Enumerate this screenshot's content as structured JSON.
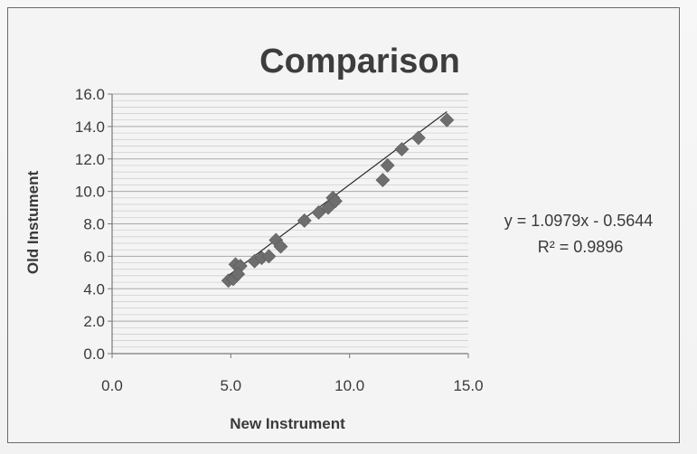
{
  "chart_data": {
    "type": "scatter",
    "title": "Comparison",
    "xlabel": "New Instrument",
    "ylabel": "Old Instument",
    "xlim": [
      0,
      15
    ],
    "ylim": [
      0,
      16
    ],
    "x_ticks": [
      "0.0",
      "5.0",
      "10.0",
      "15.0"
    ],
    "y_ticks": [
      "0.0",
      "2.0",
      "4.0",
      "6.0",
      "8.0",
      "10.0",
      "12.0",
      "14.0",
      "16.0"
    ],
    "grid": "horizontal minor gridlines",
    "legend": "none",
    "series": [
      {
        "marker": "diamond",
        "color": "#6e6e6e",
        "points": [
          [
            4.9,
            4.5
          ],
          [
            5.1,
            4.6
          ],
          [
            5.2,
            5.5
          ],
          [
            5.4,
            5.4
          ],
          [
            5.3,
            4.9
          ],
          [
            6.0,
            5.7
          ],
          [
            6.3,
            5.9
          ],
          [
            6.6,
            6.0
          ],
          [
            6.9,
            7.0
          ],
          [
            7.1,
            6.6
          ],
          [
            8.1,
            8.2
          ],
          [
            8.7,
            8.7
          ],
          [
            9.1,
            9.0
          ],
          [
            9.3,
            9.6
          ],
          [
            9.4,
            9.4
          ],
          [
            11.4,
            10.7
          ],
          [
            11.6,
            11.6
          ],
          [
            12.2,
            12.6
          ],
          [
            12.9,
            13.3
          ],
          [
            14.1,
            14.4
          ]
        ]
      }
    ],
    "trendline": {
      "type": "linear",
      "slope": 1.0979,
      "intercept": -0.5644,
      "x_range": [
        4.9,
        14.1
      ],
      "color": "#2a2a2a"
    },
    "annotations": {
      "equation": "y = 1.0979x - 0.5644",
      "r_squared": "R² = 0.9896"
    }
  }
}
